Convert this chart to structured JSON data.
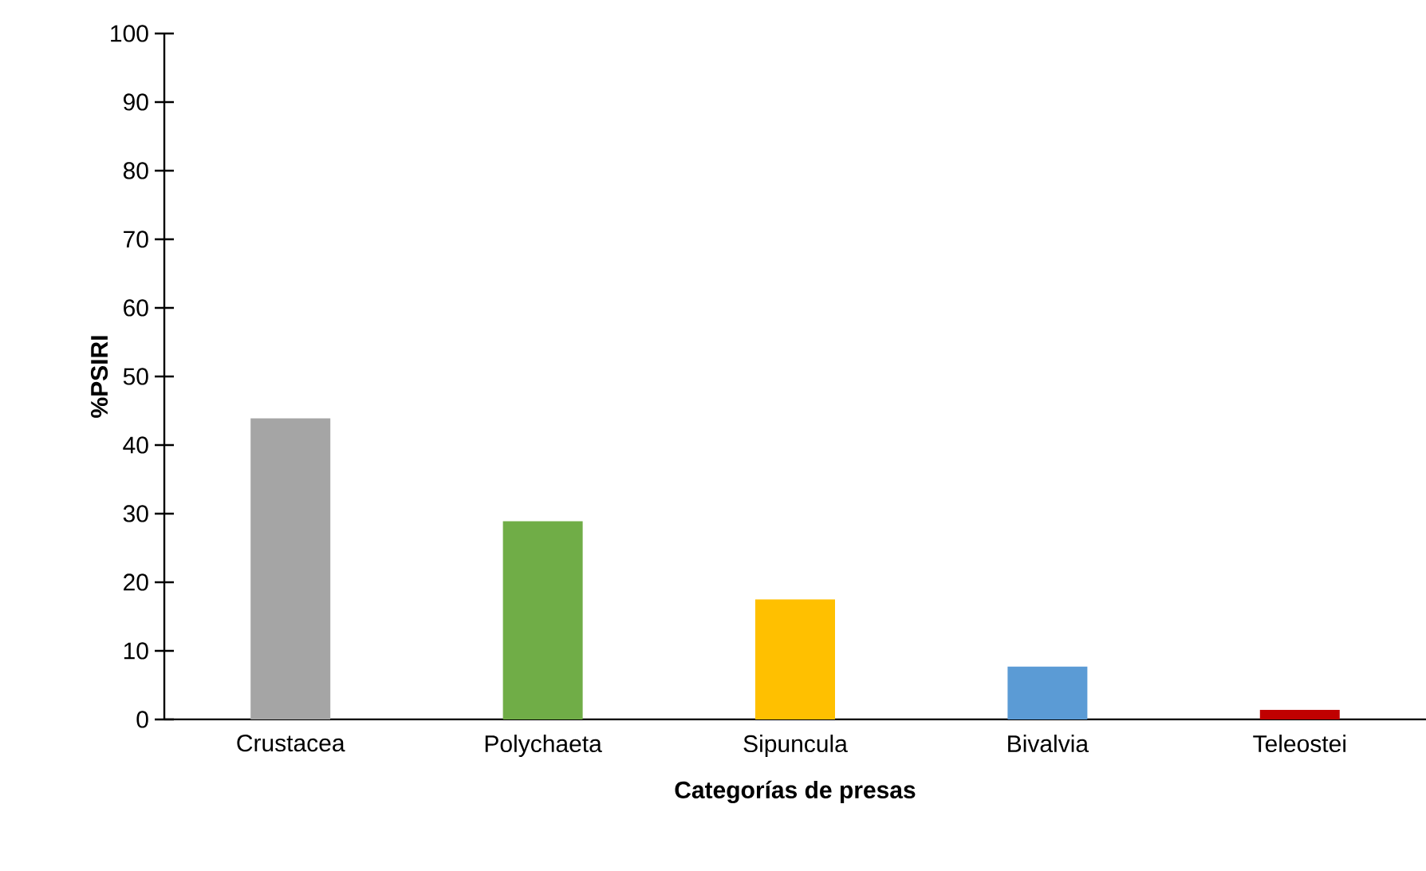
{
  "chart_data": {
    "type": "bar",
    "xlabel": "Categorías de presas",
    "ylabel": "%PSIRI",
    "categories": [
      "Crustacea",
      "Polychaeta",
      "Sipuncula",
      "Bivalvia",
      "Teleostei"
    ],
    "values": [
      43.9,
      28.9,
      17.5,
      7.7,
      1.4
    ],
    "colors": [
      "#a5a5a5",
      "#70ad47",
      "#ffc000",
      "#5b9bd5",
      "#c00000"
    ],
    "ylim": [
      0,
      100
    ],
    "yticks": [
      0,
      10,
      20,
      30,
      40,
      50,
      60,
      70,
      80,
      90,
      100
    ],
    "grid": false
  }
}
